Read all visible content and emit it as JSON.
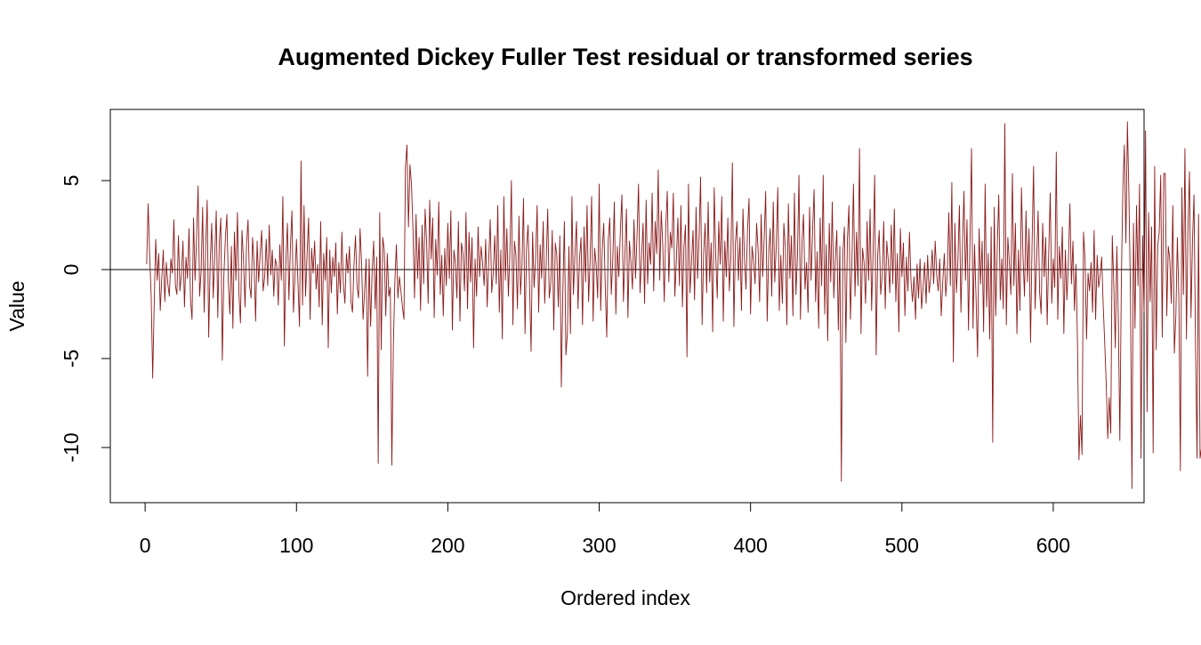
{
  "chart_data": {
    "type": "line",
    "title": "Augmented Dickey Fuller Test residual or transformed series",
    "xlabel": "Ordered index",
    "ylabel": "Value",
    "xlim": [
      -23,
      660
    ],
    "ylim": [
      -13.1,
      9.0
    ],
    "x_ticks": [
      0,
      100,
      200,
      300,
      400,
      500,
      600
    ],
    "x_tick_labels": [
      "0",
      "100",
      "200",
      "300",
      "400",
      "500",
      "600"
    ],
    "y_ticks": [
      -10,
      -5,
      0,
      5
    ],
    "y_tick_labels": [
      "-10",
      "-5",
      "0",
      "5"
    ],
    "reference_line": {
      "y": 0,
      "color": "#000000"
    },
    "grid": false,
    "legend": "none",
    "series": [
      {
        "color": "#8B1A1A",
        "x_start": 1,
        "x_step": 1,
        "values": [
          0.3,
          3.7,
          0.8,
          -1.5,
          -6.1,
          -1.9,
          1.7,
          -0.6,
          0.9,
          -2.3,
          -0.5,
          1.1,
          -1.8,
          0.4,
          -0.8,
          -1.5,
          0.6,
          -0.2,
          2.8,
          -0.9,
          -1.4,
          1.9,
          -1.2,
          -0.3,
          1.6,
          -2.1,
          0.7,
          -0.5,
          2.3,
          -1.7,
          -2.8,
          2.9,
          -0.6,
          1.8,
          4.7,
          -1.5,
          -0.1,
          3.5,
          -2.4,
          1.2,
          3.9,
          -3.8,
          0.4,
          2.6,
          -1.6,
          0.8,
          3.3,
          -2.7,
          1.5,
          2.9,
          -5.1,
          -0.4,
          1.7,
          3.1,
          -0.8,
          -2.5,
          1.3,
          -3.3,
          2.1,
          -0.6,
          3.2,
          -1.4,
          -3.0,
          2.2,
          0.5,
          -2.1,
          1.4,
          2.8,
          -0.9,
          -1.6,
          1.8,
          0.3,
          -2.9,
          1.6,
          -0.7,
          0.9,
          2.2,
          -1.2,
          -0.4,
          1.7,
          -0.9,
          2.5,
          -0.3,
          1.1,
          -1.5,
          0.6,
          0.2,
          -2.0,
          1.4,
          -0.6,
          4.1,
          -4.3,
          0.5,
          2.6,
          -1.7,
          1.3,
          3.3,
          -2.4,
          -0.4,
          1.7,
          -0.8,
          -3.2,
          6.1,
          -2.0,
          3.6,
          -1.5,
          0.8,
          2.9,
          -2.8,
          1.2,
          -0.2,
          1.6,
          -1.1,
          0.3,
          -2.1,
          2.7,
          -3.1,
          0.9,
          -0.6,
          1.8,
          -4.4,
          1.1,
          -1.3,
          0.7,
          -0.4,
          1.5,
          -2.5,
          0.4,
          -1.3,
          2.1,
          -0.8,
          -1.9,
          0.9,
          -0.2,
          1.3,
          -1.8,
          -2.4,
          0.3,
          1.9,
          -0.9,
          -1.6,
          2.3,
          0.4,
          -2.8,
          -1.2,
          0.6,
          -6.0,
          0.6,
          -3.2,
          -0.1,
          1.6,
          -2.2,
          0.7,
          -10.9,
          3.2,
          -4.5,
          1.8,
          1.1,
          -2.6,
          0.9,
          -1.5,
          -1.0,
          -11.0,
          -4.3,
          -0.7,
          1.4,
          -1.6,
          -0.4,
          -1.2,
          -2.1,
          -2.8,
          5.8,
          7.0,
          2.4,
          5.9,
          4.8,
          2.2,
          -1.6,
          3.1,
          -0.5,
          1.8,
          -2.3,
          2.5,
          -0.8,
          3.4,
          1.5,
          -1.9,
          3.9,
          0.6,
          2.9,
          -2.7,
          1.7,
          -0.3,
          3.8,
          -1.4,
          0.8,
          -2.6,
          1.2,
          -0.9,
          2.6,
          -0.5,
          3.3,
          -3.4,
          1.1,
          0.4,
          -1.6,
          2.7,
          -2.9,
          1.5,
          0.9,
          -1.2,
          3.2,
          -2.2,
          2.1,
          -0.7,
          1.8,
          -4.4,
          0.6,
          -1.5,
          2.4,
          -0.4,
          1.3,
          0.3,
          -0.9,
          1.7,
          -2.1,
          0.5,
          2.8,
          -1.3,
          -0.2,
          1.9,
          -0.8,
          3.6,
          -2.4,
          1.1,
          -3.9,
          4.1,
          -0.6,
          2.3,
          -1.5,
          0.9,
          5.0,
          -3.1,
          1.6,
          0.8,
          -2.2,
          3.0,
          -1.4,
          0.3,
          4.0,
          -3.6,
          1.2,
          2.5,
          -0.9,
          -4.6,
          2.1,
          -1.0,
          0.6,
          3.6,
          -2.4,
          1.4,
          -0.5,
          2.7,
          -1.9,
          0.4,
          3.4,
          -1.6,
          -0.8,
          2.2,
          -3.4,
          1.5,
          0.8,
          -2.1,
          1.9,
          -6.6,
          -1.2,
          2.7,
          -4.8,
          -3.6,
          1.3,
          -3.6,
          4.1,
          -1.4,
          0.9,
          2.7,
          -2.2,
          0.6,
          1.8,
          -3.1,
          2.4,
          -0.7,
          3.6,
          -1.8,
          0.5,
          4.1,
          -2.9,
          1.2,
          0.3,
          -1.6,
          4.8,
          -2.3,
          1.1,
          2.6,
          -0.9,
          -3.8,
          1.7,
          2.9,
          -1.4,
          0.6,
          3.8,
          -2.5,
          1.3,
          -0.4,
          2.2,
          4.2,
          -1.8,
          0.8,
          3.4,
          -2.7,
          1.6,
          0.4,
          -1.1,
          2.8,
          -0.5,
          1.9,
          4.8,
          -1.3,
          0.7,
          2.6,
          -1.9,
          3.9,
          -0.8,
          1.5,
          0.3,
          4.3,
          -1.2,
          2.7,
          0.9,
          5.6,
          -0.6,
          3.3,
          1.4,
          -1.8,
          2.4,
          4.4,
          -0.7,
          2.1,
          1.2,
          4.3,
          -1.5,
          0.6,
          2.9,
          -0.9,
          3.6,
          -2.1,
          1.3,
          2.5,
          -4.9,
          4.8,
          -1.3,
          0.4,
          2.2,
          -1.7,
          3.5,
          -0.5,
          1.8,
          5.2,
          -3.1,
          0.9,
          2.6,
          -1.3,
          3.8,
          -0.7,
          1.5,
          -3.5,
          4.6,
          0.8,
          -1.6,
          2.7,
          0.3,
          4.1,
          -2.9,
          1.6,
          -0.4,
          2.9,
          -1.2,
          0.7,
          6.0,
          -3.2,
          1.5,
          2.7,
          -0.6,
          1.8,
          -2.3,
          3.4,
          0.6,
          -1.1,
          2.2,
          4.0,
          -2.5,
          1.3,
          0.5,
          -0.8,
          2.6,
          1.1,
          -1.8,
          3.1,
          -0.4,
          1.7,
          4.4,
          -2.9,
          0.9,
          2.3,
          -1.5,
          3.8,
          -0.7,
          1.4,
          4.6,
          -2.3,
          0.8,
          -1.9,
          2.6,
          1.2,
          -3.1,
          3.7,
          -0.5,
          1.9,
          -2.6,
          4.3,
          -1.4,
          0.8,
          5.3,
          -2.8,
          1.5,
          3.1,
          -1.1,
          0.4,
          -2.4,
          3.5,
          -0.6,
          2.2,
          4.5,
          -1.8,
          1.0,
          -3.3,
          2.9,
          -0.9,
          5.3,
          -2.5,
          1.4,
          -4.0,
          2.6,
          -0.7,
          3.8,
          -1.6,
          0.6,
          2.2,
          -3.4,
          1.3,
          -11.9,
          0.9,
          2.4,
          -4.1,
          1.7,
          3.6,
          -2.8,
          0.5,
          4.8,
          -1.5,
          2.1,
          -0.9,
          6.8,
          -3.6,
          1.2,
          0.4,
          -1.9,
          2.7,
          -0.6,
          3.4,
          -2.3,
          1.1,
          5.3,
          -4.8,
          0.8,
          2.2,
          -1.4,
          -0.3,
          2.7,
          -2.2,
          1.6,
          0.5,
          -1.3,
          2.5,
          -0.8,
          3.4,
          -1.8,
          0.9,
          -3.5,
          2.3,
          -0.4,
          1.5,
          -2.6,
          0.7,
          -1.2,
          2.1,
          -0.6,
          -1.8,
          -0.4,
          -2.8,
          0.3,
          -1.6,
          0.6,
          -2.2,
          -1.0,
          0.4,
          -1.9,
          0.8,
          -1.3,
          -0.5,
          1.1,
          -0.8,
          1.6,
          -0.3,
          -1.2,
          0.6,
          -2.6,
          -0.7,
          0.9,
          -1.5,
          -0.2,
          3.2,
          -0.9,
          4.9,
          -5.2,
          2.6,
          -1.3,
          0.5,
          3.6,
          -2.4,
          1.2,
          4.4,
          -0.6,
          2.8,
          -3.4,
          1.7,
          6.8,
          -3.3,
          1.4,
          -1.6,
          -4.9,
          2.3,
          -0.8,
          1.6,
          -3.5,
          4.8,
          -2.1,
          0.9,
          -3.9,
          2.4,
          -9.7,
          3.5,
          -2.6,
          1.2,
          4.2,
          -1.7,
          0.6,
          -2.2,
          8.2,
          -3.1,
          1.8,
          0.4,
          -1.4,
          5.4,
          -0.9,
          2.6,
          -3.6,
          1.1,
          -2.3,
          4.6,
          0.8,
          -1.5,
          3.3,
          -0.7,
          2.3,
          -4.1,
          1.4,
          5.8,
          -2.2,
          0.5,
          3.3,
          -1.3,
          -2.5,
          2.6,
          -0.4,
          1.8,
          -3.1,
          0.9,
          4.3,
          -1.9,
          0.6,
          -1.0,
          6.6,
          -2.8,
          1.3,
          -0.5,
          2.4,
          -3.6,
          1.1,
          -1.7,
          0.4,
          3.7,
          -0.8,
          1.6,
          -2.3,
          0.3,
          -4.1,
          -10.7,
          -8.2,
          -10.4,
          2.1,
          0.6,
          -3.9,
          -0.2,
          -1.2,
          0.4,
          -2.4,
          2.2,
          -2.8,
          0.8,
          -1.0,
          -0.3,
          0.7,
          -2.0,
          -4.1,
          -6.4,
          -9.5,
          -7.2,
          -9.2,
          1.9,
          -0.8,
          -4.4,
          1.3,
          -2.8,
          -9.6,
          -0.6,
          4.6,
          7.0,
          1.5,
          8.3,
          4.2,
          -1.3,
          -12.3,
          2.6,
          -3.3,
          3.6,
          -0.9,
          4.8,
          -10.6,
          1.9,
          -2.4,
          7.8,
          -8.0,
          3.2,
          -1.8,
          2.4,
          -10.3,
          5.8,
          -4.5,
          1.3,
          2.1,
          5.3,
          -3.8,
          5.4,
          5.4,
          -2.6,
          1.3,
          0.6,
          -1.9,
          3.6,
          -4.7,
          -2.6,
          1.8,
          -1.6,
          -11.3,
          4.6,
          -1.4,
          6.8,
          -3.9,
          2.3,
          5.5,
          -2.7,
          1.6,
          4.2,
          -4.3,
          -10.6,
          3.1,
          -10.6,
          -10.0,
          2.6,
          -4.6,
          5.5,
          -1.8,
          6.4,
          -1.3,
          -2.9
        ]
      }
    ]
  }
}
